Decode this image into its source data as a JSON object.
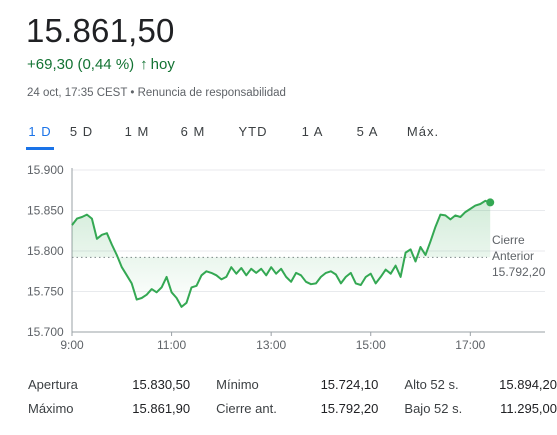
{
  "quote": {
    "price": "15.861,50",
    "change": "+69,30 (0,44 %)",
    "arrow": "↑",
    "period": "hoy",
    "timestamp": "24 oct, 17:35 CEST",
    "separator": "•",
    "disclaimer": "Renuncia de responsabilidad"
  },
  "tabs": [
    "1 D",
    "5 D",
    "1 M",
    "6 M",
    "YTD",
    "1 A",
    "5 A",
    "Máx."
  ],
  "active_tab": "1 D",
  "colors": {
    "up": "#137333",
    "line": "#34a853",
    "accent": "#1a73e8"
  },
  "chart_data": {
    "type": "line",
    "y_ticks": [
      "15.900",
      "15.850",
      "15.800",
      "15.750",
      "15.700"
    ],
    "x_ticks": [
      "9:00",
      "11:00",
      "13:00",
      "15:00",
      "17:00"
    ],
    "ylim": [
      15700,
      15900
    ],
    "xlim_hours": [
      9,
      18.5
    ],
    "previous_close_label_1": "Cierre",
    "previous_close_label_2": "Anterior",
    "previous_close_value": "15.792,20",
    "previous_close": 15792.2,
    "series": [
      {
        "x_hours": [
          9.0,
          9.1,
          9.2,
          9.3,
          9.4,
          9.5,
          9.6,
          9.7,
          9.8,
          9.9,
          10.0,
          10.1,
          10.2,
          10.3,
          10.4,
          10.5,
          10.6,
          10.7,
          10.8,
          10.9,
          11.0,
          11.1,
          11.2,
          11.3,
          11.4,
          11.5,
          11.6,
          11.7,
          11.8,
          11.9,
          12.0,
          12.1,
          12.2,
          12.3,
          12.4,
          12.5,
          12.6,
          12.7,
          12.8,
          12.9,
          13.0,
          13.1,
          13.2,
          13.3,
          13.4,
          13.5,
          13.6,
          13.7,
          13.8,
          13.9,
          14.0,
          14.1,
          14.2,
          14.3,
          14.4,
          14.5,
          14.6,
          14.7,
          14.8,
          14.9,
          15.0,
          15.1,
          15.2,
          15.3,
          15.4,
          15.5,
          15.6,
          15.7,
          15.8,
          15.9,
          16.0,
          16.1,
          16.2,
          16.3,
          16.4,
          16.5,
          16.6,
          16.7,
          16.8,
          16.9,
          17.0,
          17.1,
          17.2,
          17.3,
          17.4
        ],
        "y": [
          15832,
          15840,
          15842,
          15845,
          15840,
          15815,
          15820,
          15822,
          15808,
          15795,
          15780,
          15770,
          15760,
          15740,
          15742,
          15746,
          15753,
          15749,
          15755,
          15768,
          15749,
          15742,
          15731,
          15736,
          15755,
          15757,
          15770,
          15775,
          15773,
          15770,
          15765,
          15768,
          15780,
          15772,
          15779,
          15770,
          15778,
          15773,
          15778,
          15770,
          15780,
          15772,
          15778,
          15768,
          15762,
          15773,
          15770,
          15762,
          15759,
          15760,
          15768,
          15773,
          15775,
          15771,
          15760,
          15768,
          15773,
          15760,
          15758,
          15768,
          15772,
          15760,
          15768,
          15777,
          15772,
          15782,
          15768,
          15798,
          15802,
          15787,
          15805,
          15795,
          15812,
          15830,
          15845,
          15844,
          15839,
          15844,
          15842,
          15848,
          15852,
          15856,
          15858,
          15862,
          15860
        ]
      }
    ]
  },
  "stats": [
    [
      {
        "k": "Apertura",
        "v": "15.830,50"
      },
      {
        "k": "Mínimo",
        "v": "15.724,10"
      },
      {
        "k": "Alto 52 s.",
        "v": "15.894,20"
      }
    ],
    [
      {
        "k": "Máximo",
        "v": "15.861,90"
      },
      {
        "k": "Cierre ant.",
        "v": "15.792,20"
      },
      {
        "k": "Bajo 52 s.",
        "v": "11.295,00"
      }
    ]
  ]
}
